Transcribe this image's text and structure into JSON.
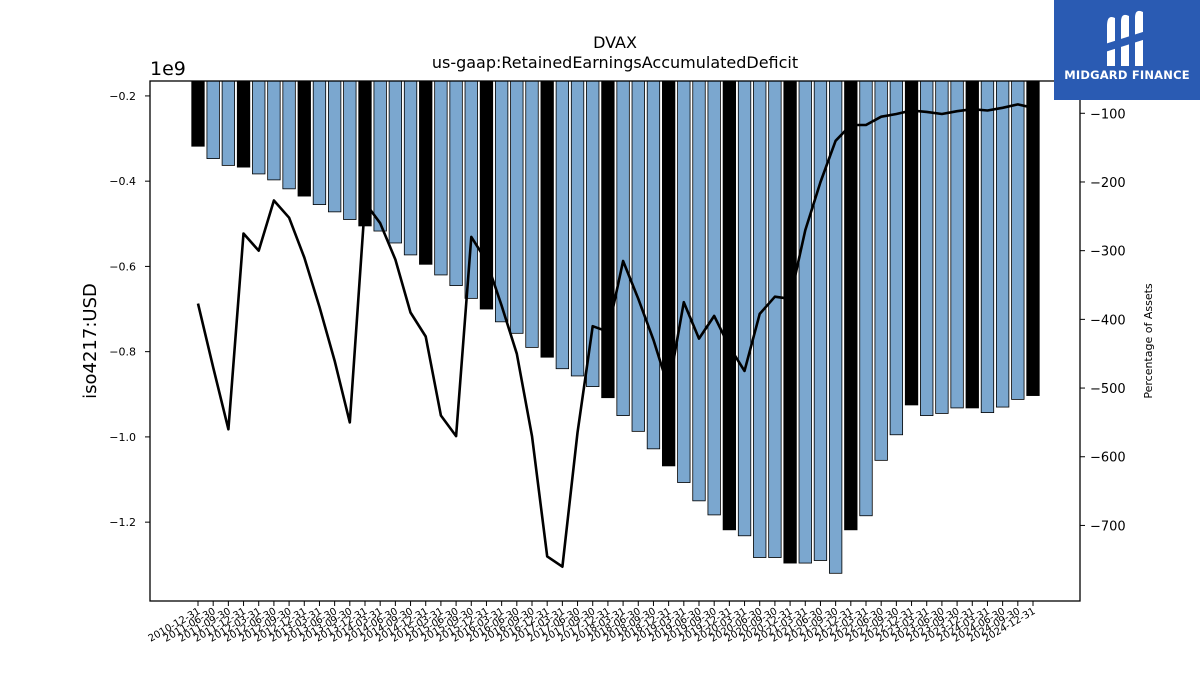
{
  "brand": {
    "name": "MIDGARD FINANCE",
    "color": "#2a5bb3"
  },
  "chart_data": {
    "type": "bar",
    "title": "DVAX",
    "subtitle": "us-gaap:RetainedEarningsAccumulatedDeficit",
    "ylabel": "iso4217:USD",
    "y_offset_label": "1e9",
    "y2label": "Percentage of Assets",
    "ylim": [
      -1.385,
      -0.165
    ],
    "y2lim": [
      -810,
      -53
    ],
    "yticks": [
      -0.2,
      -0.4,
      -0.6,
      -0.8,
      -1.0,
      -1.2
    ],
    "y2ticks": [
      -100,
      -200,
      -300,
      -400,
      -500,
      -600,
      -700
    ],
    "bar_colors": {
      "annual": "#000000",
      "quarterly": "#7ba7cf"
    },
    "categories": [
      "2010-12-31",
      "2011-06-30",
      "2011-09-30",
      "2011-12-31",
      "2012-03-31",
      "2012-06-30",
      "2012-09-30",
      "2012-12-31",
      "2013-03-31",
      "2013-06-30",
      "2013-09-30",
      "2013-12-31",
      "2014-03-31",
      "2014-06-30",
      "2014-09-30",
      "2014-12-31",
      "2015-03-31",
      "2015-06-30",
      "2015-09-30",
      "2015-12-31",
      "2016-03-31",
      "2016-06-30",
      "2016-09-30",
      "2016-12-31",
      "2017-03-31",
      "2017-06-30",
      "2017-09-30",
      "2017-12-31",
      "2018-03-31",
      "2018-06-30",
      "2018-09-30",
      "2018-12-31",
      "2019-03-31",
      "2019-06-30",
      "2019-09-30",
      "2019-12-31",
      "2020-03-31",
      "2020-06-30",
      "2020-09-30",
      "2020-12-31",
      "2021-03-31",
      "2021-06-30",
      "2021-09-30",
      "2021-12-31",
      "2022-03-31",
      "2022-06-30",
      "2022-09-30",
      "2022-12-31",
      "2023-03-31",
      "2023-06-30",
      "2023-09-30",
      "2023-12-31",
      "2024-03-31",
      "2024-06-30",
      "2024-09-30",
      "2024-12-31"
    ],
    "annual": [
      true,
      false,
      false,
      true,
      false,
      false,
      false,
      true,
      false,
      false,
      false,
      true,
      false,
      false,
      false,
      true,
      false,
      false,
      false,
      true,
      false,
      false,
      false,
      true,
      false,
      false,
      false,
      true,
      false,
      false,
      false,
      true,
      false,
      false,
      false,
      true,
      false,
      false,
      false,
      true,
      false,
      false,
      false,
      true,
      false,
      false,
      false,
      true,
      false,
      false,
      false,
      true,
      false,
      false,
      false,
      true
    ],
    "series": [
      {
        "name": "",
        "axis": "left",
        "kind": "bar",
        "values": [
          -0.318,
          -0.347,
          -0.363,
          -0.367,
          -0.383,
          -0.397,
          -0.418,
          -0.435,
          -0.455,
          -0.472,
          -0.49,
          -0.505,
          -0.517,
          -0.545,
          -0.573,
          -0.595,
          -0.62,
          -0.645,
          -0.675,
          -0.7,
          -0.73,
          -0.757,
          -0.79,
          -0.813,
          -0.84,
          -0.857,
          -0.882,
          -0.908,
          -0.95,
          -0.987,
          -1.028,
          -1.068,
          -1.107,
          -1.15,
          -1.183,
          -1.218,
          -1.232,
          -1.283,
          -1.283,
          -1.296,
          -1.296,
          -1.29,
          -1.32,
          -1.218,
          -1.185,
          -1.055,
          -0.995,
          -0.925,
          -0.95,
          -0.945,
          -0.932,
          -0.932,
          -0.943,
          -0.93,
          -0.912,
          -0.903
        ]
      },
      {
        "name": "",
        "axis": "right",
        "kind": "line",
        "values": [
          -377,
          -470,
          -560,
          -275,
          -300,
          -227,
          -252,
          -310,
          -382,
          -460,
          -550,
          -230,
          -260,
          -313,
          -390,
          -425,
          -540,
          -570,
          -280,
          -315,
          -380,
          -450,
          -570,
          -745,
          -760,
          -565,
          -410,
          -418,
          -315,
          -370,
          -430,
          -500,
          -375,
          -428,
          -395,
          -440,
          -475,
          -392,
          -367,
          -370,
          -270,
          -200,
          -140,
          -117,
          -117,
          -105,
          -101,
          -96,
          -98,
          -101,
          -97,
          -94,
          -96,
          -92,
          -87,
          -92
        ]
      }
    ]
  }
}
